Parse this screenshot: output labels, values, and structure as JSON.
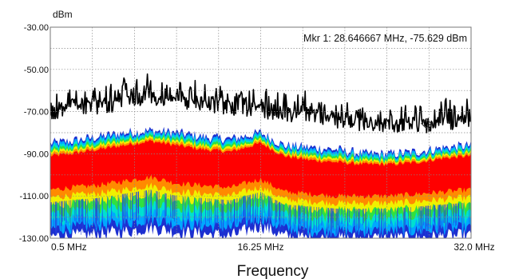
{
  "chart_data": {
    "type": "spectrum-density",
    "y_unit": "dBm",
    "xlabel": "Frequency",
    "ylim": [
      -130,
      -30
    ],
    "xlim": [
      0.5,
      32.0
    ],
    "y_ticks": [
      {
        "value": -30,
        "label": "-30.00"
      },
      {
        "value": -50,
        "label": "-50.00"
      },
      {
        "value": -70,
        "label": "-70.00"
      },
      {
        "value": -90,
        "label": "-90.00"
      },
      {
        "value": -110,
        "label": "-110.00"
      },
      {
        "value": -130,
        "label": "-130.00"
      }
    ],
    "x_ticks": [
      {
        "value": 0.5,
        "label": "0.5 MHz"
      },
      {
        "value": 16.25,
        "label": "16.25 MHz"
      },
      {
        "value": 32.0,
        "label": "32.0 MHz"
      }
    ],
    "grid": true,
    "marker": {
      "label": "Mkr 1: 28.646667 MHz, -75.629 dBm",
      "freq_mhz": 28.646667,
      "level_dbm": -75.629
    },
    "density_colors": [
      "#1c2fd0",
      "#00a8ff",
      "#00e0d0",
      "#30e040",
      "#f0f000",
      "#ff8a00",
      "#ff0000"
    ],
    "peak_color": "#000000",
    "series": [
      {
        "role": "max-hold",
        "x": [
          0.5,
          2,
          4,
          6,
          8,
          10,
          12,
          14,
          16.25,
          18,
          20,
          22,
          24,
          26,
          28,
          30,
          32
        ],
        "y": [
          -68,
          -64,
          -65,
          -62,
          -60,
          -63,
          -63,
          -65,
          -66,
          -68,
          -68,
          -72,
          -72,
          -73,
          -74,
          -72,
          -71
        ]
      },
      {
        "role": "density-upper-edge",
        "x": [
          0.5,
          2,
          4,
          6,
          8,
          10,
          12,
          14,
          16.25,
          18,
          20,
          22,
          24,
          26,
          28,
          30,
          32
        ],
        "y": [
          -85,
          -84,
          -82,
          -80,
          -79,
          -80,
          -82,
          -83,
          -80,
          -86,
          -87,
          -88,
          -90,
          -90,
          -89,
          -87,
          -86
        ]
      },
      {
        "role": "density-core-top",
        "x": [
          0.5,
          2,
          4,
          6,
          8,
          10,
          12,
          14,
          16.25,
          18,
          20,
          22,
          24,
          26,
          28,
          30,
          32
        ],
        "y": [
          -91,
          -90,
          -88,
          -86,
          -84,
          -86,
          -88,
          -89,
          -85,
          -91,
          -93,
          -94,
          -95,
          -95,
          -94,
          -92,
          -91
        ]
      },
      {
        "role": "density-core-bottom",
        "x": [
          0.5,
          2,
          4,
          6,
          8,
          10,
          12,
          14,
          16.25,
          18,
          20,
          22,
          24,
          26,
          28,
          30,
          32
        ],
        "y": [
          -107,
          -106,
          -105,
          -103,
          -101,
          -104,
          -105,
          -106,
          -102,
          -108,
          -109,
          -110,
          -110,
          -110,
          -109,
          -108,
          -107
        ]
      },
      {
        "role": "density-lower-edge",
        "x": [
          0.5,
          2,
          4,
          6,
          8,
          10,
          12,
          14,
          16.25,
          18,
          20,
          22,
          24,
          26,
          28,
          30,
          32
        ],
        "y": [
          -129,
          -129,
          -128,
          -127,
          -125,
          -127,
          -128,
          -129,
          -124,
          -129,
          -130,
          -130,
          -130,
          -130,
          -130,
          -129,
          -129
        ]
      }
    ]
  }
}
